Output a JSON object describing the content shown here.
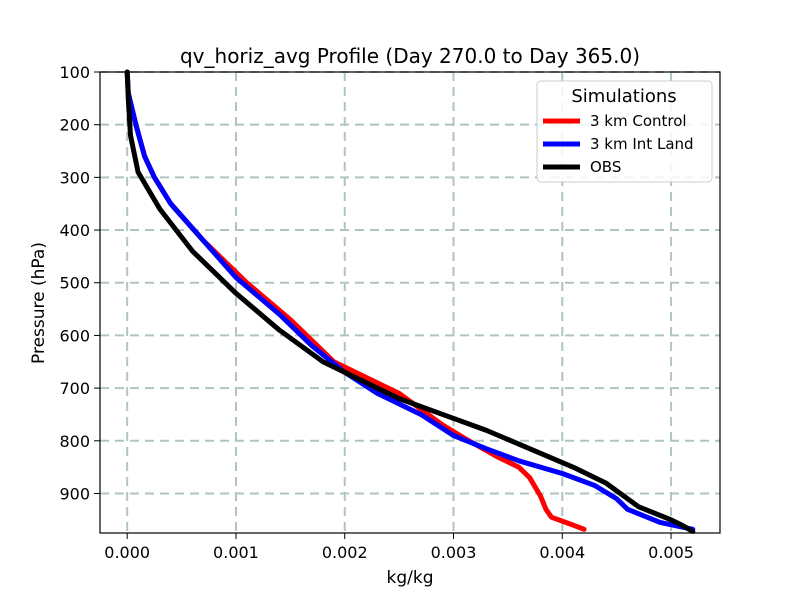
{
  "chart_data": {
    "type": "line",
    "title": "qv_horiz_avg Profile (Day 270.0 to Day 365.0)",
    "xlabel": "kg/kg",
    "ylabel": "Pressure (hPa)",
    "xlim": [
      -0.00025,
      0.00545
    ],
    "ylim": [
      975,
      100
    ],
    "y_inverted": true,
    "grid": true,
    "x_ticks": [
      {
        "value": 0.0,
        "label": "0.000"
      },
      {
        "value": 0.001,
        "label": "0.001"
      },
      {
        "value": 0.002,
        "label": "0.002"
      },
      {
        "value": 0.003,
        "label": "0.003"
      },
      {
        "value": 0.004,
        "label": "0.004"
      },
      {
        "value": 0.005,
        "label": "0.005"
      }
    ],
    "y_ticks": [
      {
        "value": 100,
        "label": "100"
      },
      {
        "value": 200,
        "label": "200"
      },
      {
        "value": 300,
        "label": "300"
      },
      {
        "value": 400,
        "label": "400"
      },
      {
        "value": 500,
        "label": "500"
      },
      {
        "value": 600,
        "label": "600"
      },
      {
        "value": 700,
        "label": "700"
      },
      {
        "value": 800,
        "label": "800"
      },
      {
        "value": 900,
        "label": "900"
      }
    ],
    "legend": {
      "title": "Simulations",
      "placement": "top-right"
    },
    "series": [
      {
        "name": "3 km Control",
        "color": "#ff0000",
        "points": [
          [
            0.0,
            100
          ],
          [
            1e-05,
            140
          ],
          [
            8e-05,
            200
          ],
          [
            0.00016,
            260
          ],
          [
            0.00025,
            300
          ],
          [
            0.0004,
            350
          ],
          [
            0.0007,
            420
          ],
          [
            0.0011,
            500
          ],
          [
            0.0015,
            570
          ],
          [
            0.0017,
            610
          ],
          [
            0.0019,
            650
          ],
          [
            0.0022,
            680
          ],
          [
            0.0025,
            710
          ],
          [
            0.0027,
            740
          ],
          [
            0.0029,
            770
          ],
          [
            0.0031,
            795
          ],
          [
            0.0034,
            830
          ],
          [
            0.0036,
            850
          ],
          [
            0.0037,
            870
          ],
          [
            0.0038,
            905
          ],
          [
            0.00385,
            930
          ],
          [
            0.0039,
            945
          ],
          [
            0.0041,
            960
          ],
          [
            0.0042,
            968
          ]
        ]
      },
      {
        "name": "3 km Int Land",
        "color": "#0000ff",
        "points": [
          [
            0.0,
            100
          ],
          [
            1e-05,
            140
          ],
          [
            8e-05,
            200
          ],
          [
            0.00016,
            260
          ],
          [
            0.00025,
            300
          ],
          [
            0.0004,
            350
          ],
          [
            0.0007,
            420
          ],
          [
            0.001,
            490
          ],
          [
            0.0014,
            560
          ],
          [
            0.0017,
            620
          ],
          [
            0.002,
            670
          ],
          [
            0.0023,
            710
          ],
          [
            0.0027,
            750
          ],
          [
            0.003,
            790
          ],
          [
            0.0033,
            815
          ],
          [
            0.0036,
            838
          ],
          [
            0.004,
            862
          ],
          [
            0.0043,
            885
          ],
          [
            0.0045,
            910
          ],
          [
            0.0046,
            930
          ],
          [
            0.0049,
            955
          ],
          [
            0.0052,
            968
          ]
        ]
      },
      {
        "name": "OBS",
        "color": "#000000",
        "points": [
          [
            0.0,
            100
          ],
          [
            1e-05,
            150
          ],
          [
            3e-05,
            220
          ],
          [
            0.0001,
            290
          ],
          [
            0.0003,
            360
          ],
          [
            0.0006,
            440
          ],
          [
            0.001,
            520
          ],
          [
            0.0014,
            590
          ],
          [
            0.0018,
            650
          ],
          [
            0.0021,
            680
          ],
          [
            0.0025,
            720
          ],
          [
            0.0029,
            750
          ],
          [
            0.0033,
            780
          ],
          [
            0.0037,
            815
          ],
          [
            0.0041,
            850
          ],
          [
            0.0044,
            880
          ],
          [
            0.0046,
            910
          ],
          [
            0.0047,
            925
          ],
          [
            0.005,
            950
          ],
          [
            0.0051,
            960
          ],
          [
            0.0052,
            972
          ]
        ]
      }
    ]
  }
}
